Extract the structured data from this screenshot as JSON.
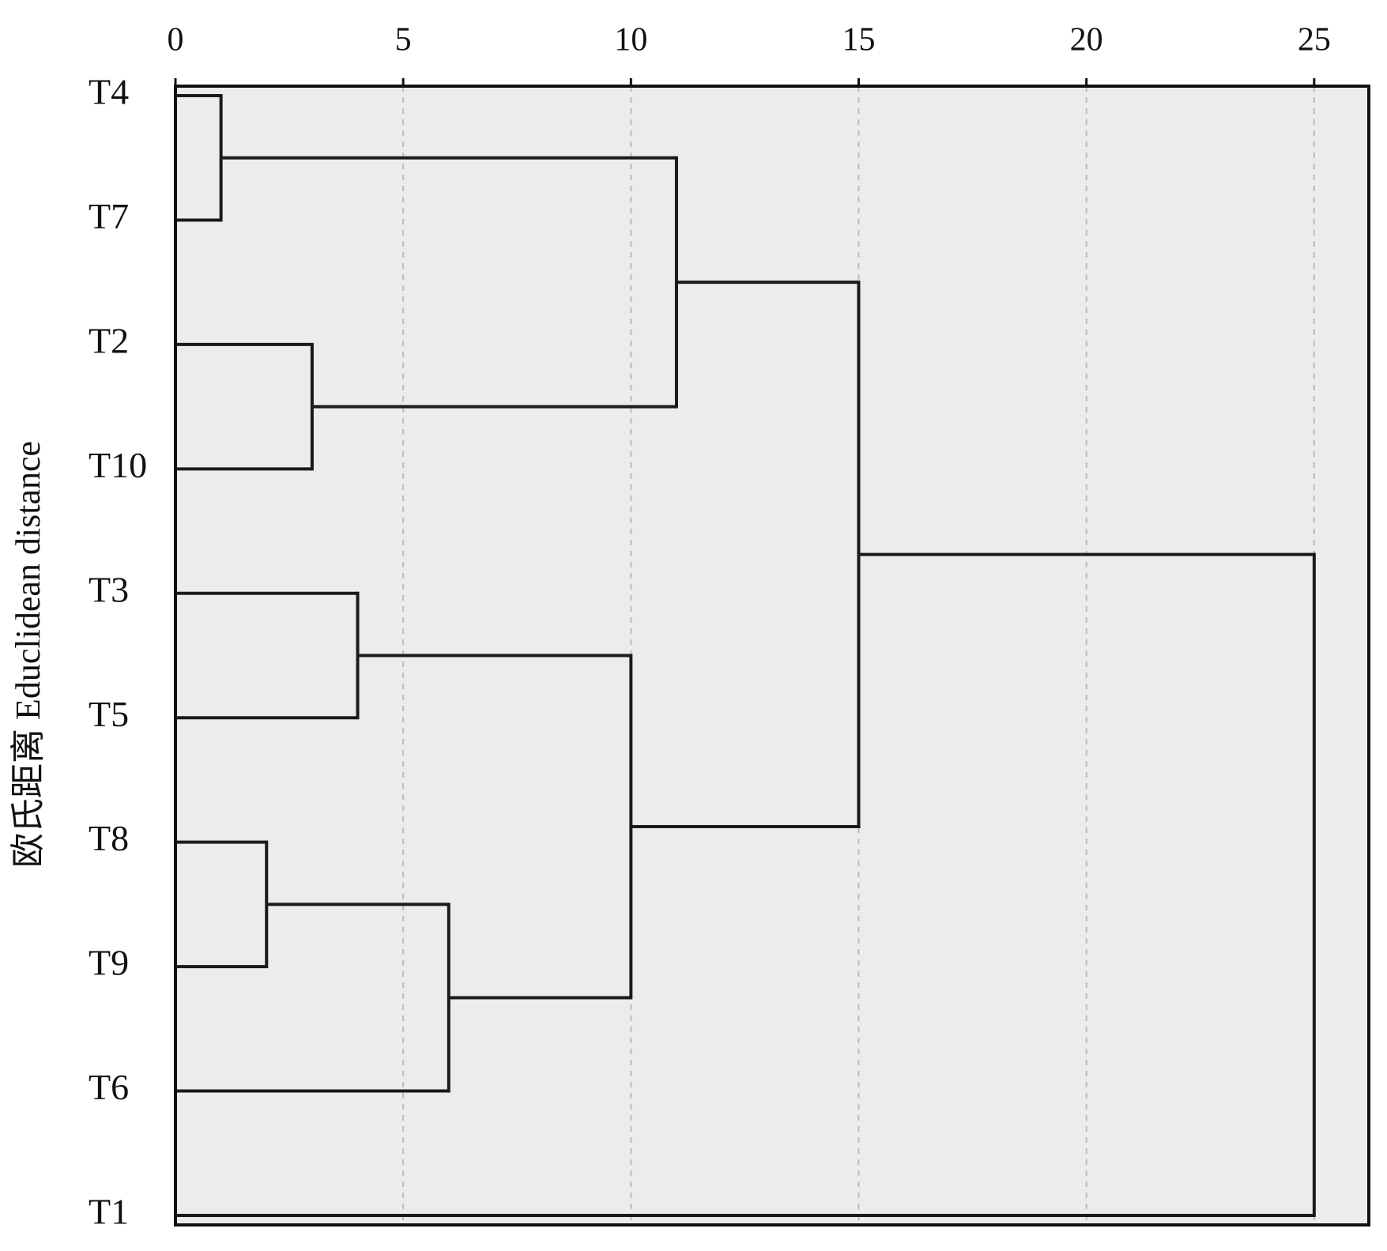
{
  "chart_data": {
    "type": "dendrogram",
    "y_label": "欧氏距离  Educlidean distance",
    "leaves": [
      "T4",
      "T7",
      "T2",
      "T10",
      "T3",
      "T5",
      "T8",
      "T9",
      "T6",
      "T1"
    ],
    "merges": [
      {
        "nodes": [
          0,
          1
        ],
        "height": 1
      },
      {
        "nodes": [
          2,
          3
        ],
        "height": 3
      },
      {
        "nodes": [
          10,
          11
        ],
        "height": 11
      },
      {
        "nodes": [
          4,
          5
        ],
        "height": 4
      },
      {
        "nodes": [
          6,
          7
        ],
        "height": 2
      },
      {
        "nodes": [
          14,
          8
        ],
        "height": 6
      },
      {
        "nodes": [
          13,
          15
        ],
        "height": 10
      },
      {
        "nodes": [
          12,
          16
        ],
        "height": 15
      },
      {
        "nodes": [
          17,
          9
        ],
        "height": 25
      }
    ],
    "xlim": [
      0,
      26.2
    ],
    "xticks": [
      0,
      5,
      10,
      15,
      20,
      25
    ],
    "grid": true,
    "color": "#1a1a1a",
    "background": "#ececec"
  }
}
